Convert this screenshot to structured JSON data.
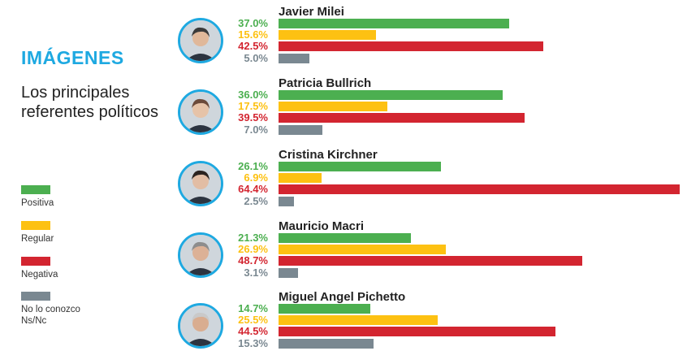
{
  "header": {
    "title": "IMÁGENES",
    "subtitle": "Los principales referentes políticos"
  },
  "legend": [
    {
      "label": "Positiva",
      "color": "#4caf50"
    },
    {
      "label": "Regular",
      "color": "#fdc112"
    },
    {
      "label": "Negativa",
      "color": "#d32530"
    },
    {
      "label": "No lo conozco\nNs/Nc",
      "color": "#7a8891"
    }
  ],
  "chart_data": {
    "type": "bar",
    "orientation": "horizontal",
    "unit": "%",
    "categories": [
      "Positiva",
      "Regular",
      "Negativa",
      "No lo conozco Ns/Nc"
    ],
    "colors": [
      "#4caf50",
      "#fdc112",
      "#d32530",
      "#7a8891"
    ],
    "series": [
      {
        "name": "Javier Milei",
        "values": [
          37.0,
          15.6,
          42.5,
          5.0
        ],
        "labels": [
          "37.0%",
          "15.6%",
          "42.5%",
          "5.0%"
        ]
      },
      {
        "name": "Patricia Bullrich",
        "values": [
          36.0,
          17.5,
          39.5,
          7.0
        ],
        "labels": [
          "36.0%",
          "17.5%",
          "39.5%",
          "7.0%"
        ]
      },
      {
        "name": "Cristina Kirchner",
        "values": [
          26.1,
          6.9,
          64.4,
          2.5
        ],
        "labels": [
          "26.1%",
          "6.9%",
          "64.4%",
          "2.5%"
        ]
      },
      {
        "name": "Mauricio Macri",
        "values": [
          21.3,
          26.9,
          48.7,
          3.1
        ],
        "labels": [
          "21.3%",
          "26.9%",
          "48.7%",
          "3.1%"
        ]
      },
      {
        "name": "Miguel Angel Pichetto",
        "values": [
          14.7,
          25.5,
          44.5,
          15.3
        ],
        "labels": [
          "14.7%",
          "25.5%",
          "44.5%",
          "15.3%"
        ]
      }
    ],
    "xlim": [
      0,
      64.4
    ]
  }
}
